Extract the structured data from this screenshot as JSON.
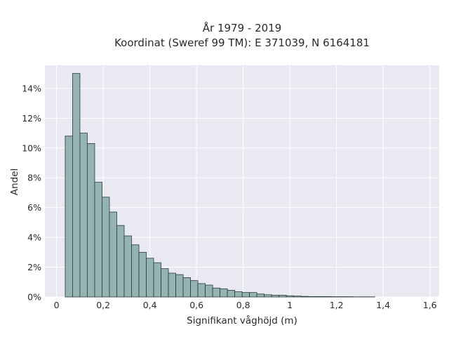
{
  "chart_data": {
    "type": "bar",
    "title": "År 1979 - 2019",
    "subtitle": "Koordinat (Sweref 99 TM): E 371039, N 6164181",
    "xlabel": "Signifikant våghöjd (m)",
    "ylabel": "Andel",
    "xlim": [
      -0.05,
      1.64
    ],
    "ylim": [
      0,
      0.1555
    ],
    "xticks": [
      0,
      0.2,
      0.4,
      0.6,
      0.8,
      1.0,
      1.2,
      1.4,
      1.6
    ],
    "xtick_labels": [
      "0",
      "0,2",
      "0,4",
      "0,6",
      "0,8",
      "1",
      "1,2",
      "1,4",
      "1,6"
    ],
    "yticks": [
      0,
      0.02,
      0.04,
      0.06,
      0.08,
      0.1,
      0.12,
      0.14
    ],
    "ytick_labels": [
      "0%",
      "2%",
      "4%",
      "6%",
      "8%",
      "10%",
      "12%",
      "14%"
    ],
    "grid": true,
    "bin_width": 0.0316,
    "bin_edges_start": 0.037,
    "values": [
      0.108,
      0.15,
      0.11,
      0.103,
      0.077,
      0.067,
      0.057,
      0.048,
      0.041,
      0.035,
      0.03,
      0.026,
      0.023,
      0.019,
      0.016,
      0.015,
      0.013,
      0.011,
      0.009,
      0.008,
      0.006,
      0.0055,
      0.0045,
      0.0035,
      0.003,
      0.003,
      0.002,
      0.0015,
      0.0012,
      0.0012,
      0.0008,
      0.0006,
      0.0004,
      0.0003,
      0.0003,
      0.0003,
      0.0002,
      0.0002,
      0.0002,
      0.0001,
      0.0001,
      0.0001
    ],
    "colors": {
      "bar_fill": "#95b3b1",
      "bar_edge": "#2b3a3a",
      "plot_bg": "#e9e9f1",
      "grid": "#ffffff"
    }
  }
}
